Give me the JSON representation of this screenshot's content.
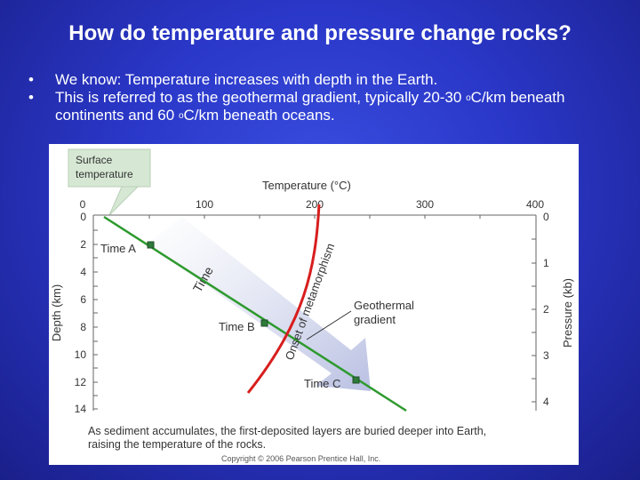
{
  "slide": {
    "title": "How do temperature and pressure change rocks?",
    "bullets": [
      {
        "text": "We know: Temperature increases with depth in the Earth."
      },
      {
        "pre": "This is referred to as the geothermal gradient, typically 20-30 ",
        "sup1": "o",
        "mid": "C/km beneath continents and 60 ",
        "sup2": "o",
        "post": "C/km beneath oceans."
      }
    ]
  },
  "figure": {
    "callout": [
      "Surface",
      "temperature"
    ],
    "temp_axis_label": "Temperature (°C)",
    "temp_ticks": [
      "0",
      "100",
      "200",
      "300",
      "400"
    ],
    "depth_axis_label": "Depth (km)",
    "depth_ticks": [
      "0",
      "2",
      "4",
      "6",
      "8",
      "10",
      "12",
      "14"
    ],
    "pressure_axis_label": "Pressure (kb)",
    "pressure_ticks": [
      "0",
      "1",
      "2",
      "3",
      "4"
    ],
    "time_label": "Time",
    "onset_label": "Onset of metamorphism",
    "geothermal_label": [
      "Geothermal",
      "gradient"
    ],
    "points": [
      "Time A",
      "Time B",
      "Time C"
    ],
    "caption": [
      "As sediment accumulates, the first-deposited layers are buried deeper into Earth,",
      "raising the temperature of the rocks."
    ],
    "copyright": "Copyright © 2006 Pearson Prentice Hall, Inc.",
    "colors": {
      "gradient_line": "#2e9a2e",
      "onset_curve": "#d81e1e",
      "arrow": "#c7cde6",
      "callout_bg": "#d6e8d4"
    }
  }
}
